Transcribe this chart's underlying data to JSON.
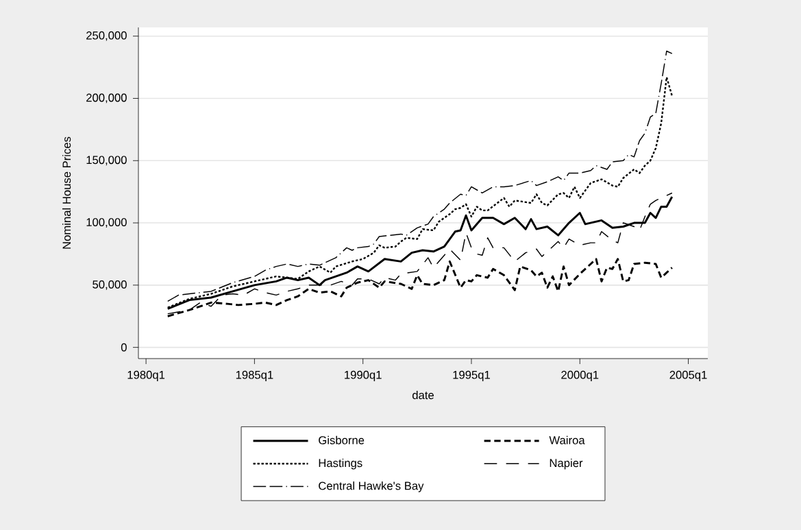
{
  "chart_data": {
    "type": "line",
    "xlabel": "date",
    "ylabel": "Nominal House Prices",
    "xlim": [
      "1979-08-25",
      "2005-11-25"
    ],
    "ylim": [
      -9000,
      257000
    ],
    "xticks": [
      {
        "value": "1980-01",
        "label": "1980q1"
      },
      {
        "value": "1985-01",
        "label": "1985q1"
      },
      {
        "value": "1990-01",
        "label": "1990q1"
      },
      {
        "value": "1995-01",
        "label": "1995q1"
      },
      {
        "value": "2000-01",
        "label": "2000q1"
      },
      {
        "value": "2005-01",
        "label": "2005q1"
      }
    ],
    "yticks": [
      {
        "value": 0,
        "label": "0"
      },
      {
        "value": 50000,
        "label": "50,000"
      },
      {
        "value": 100000,
        "label": "100,000"
      },
      {
        "value": 150000,
        "label": "150,000"
      },
      {
        "value": 200000,
        "label": "200,000"
      },
      {
        "value": 250000,
        "label": "250,000"
      }
    ],
    "grid": "y",
    "legend": "bottom",
    "series": [
      {
        "name": "Gisborne",
        "color": "#000000",
        "line_style": "solid",
        "x": [
          "1981-01",
          "1982-01",
          "1983-01",
          "1984-01",
          "1985-01",
          "1986-01",
          "1986-07",
          "1987-01",
          "1987-07",
          "1988-01",
          "1988-04",
          "1989-04",
          "1989-10",
          "1990-04",
          "1991-01",
          "1991-10",
          "1992-04",
          "1992-10",
          "1993-04",
          "1993-10",
          "1994-04",
          "1994-07",
          "1994-10",
          "1995-01",
          "1995-07",
          "1996-01",
          "1996-07",
          "1997-01",
          "1997-07",
          "1997-10",
          "1998-01",
          "1998-07",
          "1999-01",
          "1999-07",
          "2000-01",
          "2000-04",
          "2001-01",
          "2001-07",
          "2002-01",
          "2002-07",
          "2003-01",
          "2003-04",
          "2003-07",
          "2003-10",
          "2004-01",
          "2004-04"
        ],
        "values": [
          31000,
          38000,
          40000,
          45000,
          50000,
          53000,
          56000,
          54000,
          56000,
          50000,
          54000,
          60000,
          65000,
          61000,
          71000,
          69000,
          76000,
          78000,
          77000,
          81000,
          93000,
          94000,
          106000,
          94000,
          104000,
          104000,
          99000,
          104000,
          95000,
          103000,
          95000,
          97000,
          90000,
          100000,
          108000,
          99000,
          102000,
          96000,
          97000,
          100000,
          100000,
          108000,
          104000,
          113000,
          113000,
          121000
        ]
      },
      {
        "name": "Wairoa",
        "color": "#000000",
        "line_style": "dashed",
        "x": [
          "1981-01",
          "1982-01",
          "1983-01",
          "1983-10",
          "1984-04",
          "1985-01",
          "1985-07",
          "1986-01",
          "1986-07",
          "1987-01",
          "1987-07",
          "1988-01",
          "1988-07",
          "1989-01",
          "1989-04",
          "1989-10",
          "1990-04",
          "1990-10",
          "1991-01",
          "1991-10",
          "1992-04",
          "1992-07",
          "1992-10",
          "1993-04",
          "1993-10",
          "1994-01",
          "1994-07",
          "1994-10",
          "1995-01",
          "1995-04",
          "1995-10",
          "1996-01",
          "1996-07",
          "1997-01",
          "1997-04",
          "1997-10",
          "1998-01",
          "1998-04",
          "1998-07",
          "1998-10",
          "1999-01",
          "1999-04",
          "1999-07",
          "2000-01",
          "2000-07",
          "2000-10",
          "2001-01",
          "2001-04",
          "2001-07",
          "2001-10",
          "2002-01",
          "2002-04",
          "2002-07",
          "2003-01",
          "2003-07",
          "2003-10",
          "2004-01",
          "2004-04"
        ],
        "values": [
          25000,
          30000,
          36000,
          35000,
          34000,
          35000,
          36000,
          34000,
          38000,
          41000,
          47000,
          44000,
          45000,
          41000,
          48000,
          52000,
          54000,
          48000,
          53000,
          51000,
          47000,
          58000,
          51000,
          50000,
          54000,
          69000,
          48000,
          54000,
          53000,
          58000,
          56000,
          63000,
          58000,
          46000,
          65000,
          62000,
          57000,
          60000,
          48000,
          57000,
          45000,
          65000,
          50000,
          59000,
          67000,
          71000,
          53000,
          64000,
          63000,
          71000,
          53000,
          54000,
          67000,
          68000,
          67000,
          56000,
          60000,
          64000
        ]
      },
      {
        "name": "Hastings",
        "color": "#000000",
        "line_style": "dotted",
        "x": [
          "1981-01",
          "1982-01",
          "1983-01",
          "1984-01",
          "1985-01",
          "1986-01",
          "1987-01",
          "1987-07",
          "1988-01",
          "1988-07",
          "1988-10",
          "1989-07",
          "1990-01",
          "1990-07",
          "1990-10",
          "1991-01",
          "1991-07",
          "1991-10",
          "1992-01",
          "1992-07",
          "1992-10",
          "1993-04",
          "1993-07",
          "1994-01",
          "1994-04",
          "1994-07",
          "1994-10",
          "1995-01",
          "1995-04",
          "1995-07",
          "1995-10",
          "1996-07",
          "1996-10",
          "1997-01",
          "1997-10",
          "1998-01",
          "1998-04",
          "1998-07",
          "1999-01",
          "1999-04",
          "1999-07",
          "1999-10",
          "2000-01",
          "2000-07",
          "2001-01",
          "2001-07",
          "2001-10",
          "2002-01",
          "2002-07",
          "2002-10",
          "2003-01",
          "2003-04",
          "2003-07",
          "2003-10",
          "2004-01",
          "2004-04"
        ],
        "values": [
          32000,
          39000,
          43000,
          49000,
          53000,
          57000,
          55000,
          61000,
          65000,
          60000,
          65000,
          69000,
          71000,
          76000,
          82000,
          80000,
          81000,
          85000,
          88000,
          87000,
          95000,
          94000,
          101000,
          107000,
          111000,
          112000,
          115000,
          105000,
          113000,
          110000,
          110000,
          120000,
          113000,
          118000,
          116000,
          123000,
          116000,
          114000,
          123000,
          124000,
          120000,
          129000,
          120000,
          132000,
          135000,
          130000,
          129000,
          136000,
          143000,
          140000,
          146000,
          150000,
          160000,
          180000,
          217000,
          202000
        ]
      },
      {
        "name": "Napier",
        "color": "#000000",
        "line_style": "longdashed",
        "x": [
          "1981-01",
          "1982-01",
          "1982-07",
          "1983-01",
          "1983-07",
          "1984-01",
          "1984-07",
          "1985-01",
          "1985-07",
          "1986-01",
          "1986-07",
          "1987-01",
          "1987-07",
          "1988-01",
          "1988-07",
          "1989-01",
          "1989-07",
          "1989-10",
          "1990-04",
          "1990-10",
          "1991-01",
          "1991-07",
          "1991-10",
          "1992-07",
          "1993-01",
          "1993-04",
          "1994-01",
          "1994-07",
          "1994-10",
          "1995-01",
          "1995-04",
          "1995-07",
          "1995-10",
          "1996-01",
          "1996-07",
          "1997-01",
          "1997-07",
          "1998-01",
          "1998-04",
          "1999-01",
          "1999-04",
          "1999-07",
          "2000-01",
          "2000-07",
          "2000-10",
          "2001-01",
          "2001-07",
          "2001-10",
          "2002-01",
          "2002-07",
          "2002-10",
          "2003-01",
          "2003-04",
          "2003-07",
          "2003-10",
          "2004-01",
          "2004-04"
        ],
        "values": [
          27000,
          30000,
          36000,
          33000,
          42000,
          43000,
          42000,
          47000,
          44000,
          42000,
          45000,
          47000,
          50000,
          50000,
          50000,
          53000,
          50000,
          55000,
          55000,
          51000,
          56000,
          54000,
          59000,
          61000,
          72000,
          64000,
          79000,
          70000,
          92000,
          80000,
          75000,
          74000,
          88000,
          80000,
          80000,
          69000,
          76000,
          79000,
          73000,
          85000,
          80000,
          87000,
          82000,
          84000,
          84000,
          93000,
          86000,
          84000,
          100000,
          97000,
          94000,
          105000,
          115000,
          118000,
          120000,
          122000,
          124000
        ]
      },
      {
        "name": "Central Hawke's Bay",
        "color": "#000000",
        "line_style": "dashdot",
        "x": [
          "1981-01",
          "1981-07",
          "1982-01",
          "1983-01",
          "1984-01",
          "1985-01",
          "1985-07",
          "1986-01",
          "1986-07",
          "1987-01",
          "1987-07",
          "1988-01",
          "1988-10",
          "1989-04",
          "1989-07",
          "1989-10",
          "1990-04",
          "1990-07",
          "1990-10",
          "1991-04",
          "1991-10",
          "1992-01",
          "1992-07",
          "1993-01",
          "1993-04",
          "1993-10",
          "1994-01",
          "1994-07",
          "1994-10",
          "1995-01",
          "1995-07",
          "1996-01",
          "1996-07",
          "1997-01",
          "1997-10",
          "1998-01",
          "1998-07",
          "1999-01",
          "1999-04",
          "1999-07",
          "2000-01",
          "2000-07",
          "2000-10",
          "2001-04",
          "2001-07",
          "2002-01",
          "2002-04",
          "2002-07",
          "2002-10",
          "2003-01",
          "2003-04",
          "2003-07",
          "2003-10",
          "2004-01",
          "2004-04"
        ],
        "values": [
          37000,
          42000,
          43000,
          45000,
          52000,
          57000,
          62000,
          65000,
          67000,
          65000,
          67000,
          66000,
          72000,
          80000,
          78000,
          80000,
          81000,
          83000,
          89000,
          90000,
          91000,
          90000,
          96000,
          99000,
          105000,
          111000,
          116000,
          123000,
          122000,
          129000,
          124000,
          129000,
          129000,
          130000,
          134000,
          130000,
          133000,
          137000,
          134000,
          140000,
          140000,
          142000,
          146000,
          143000,
          149000,
          150000,
          155000,
          153000,
          166000,
          172000,
          185000,
          188000,
          212000,
          238000,
          236000
        ]
      }
    ]
  }
}
